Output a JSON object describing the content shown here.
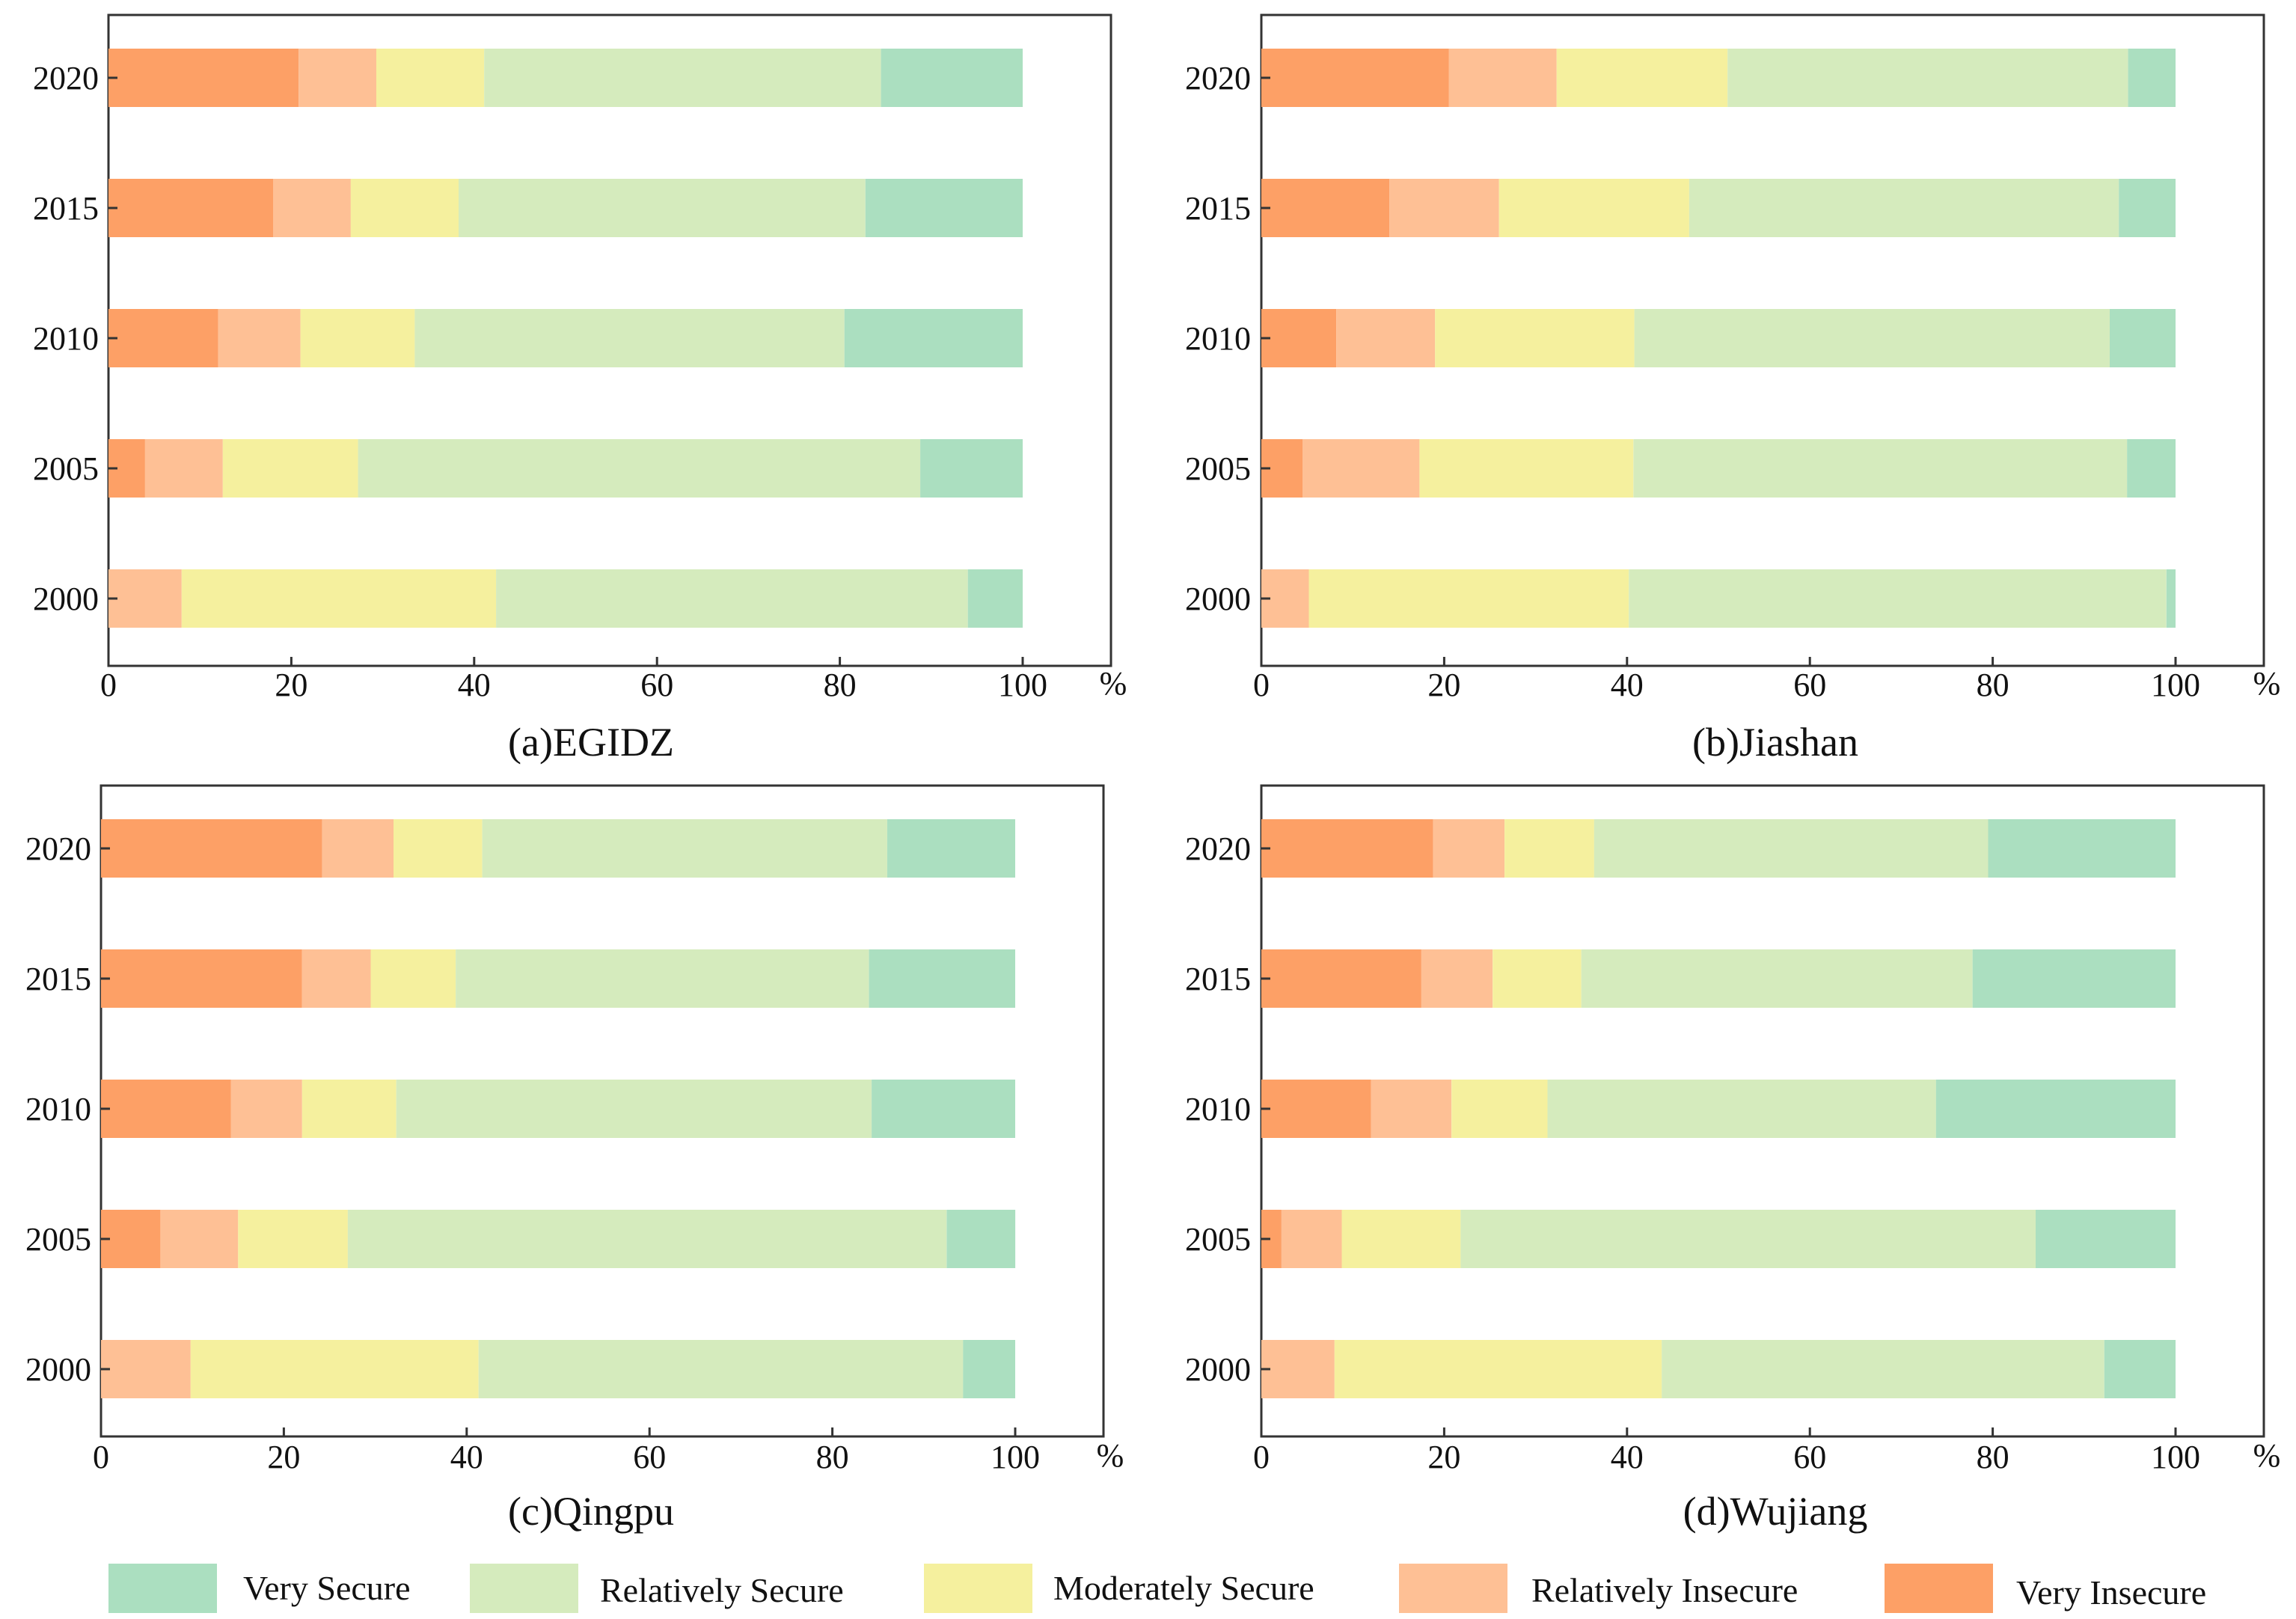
{
  "legend": [
    {
      "key": "very_secure",
      "label": "Very Secure",
      "color": "#abdfc0"
    },
    {
      "key": "relatively_secure",
      "label": "Relatively Secure",
      "color": "#d5ebbd"
    },
    {
      "key": "moderately_secure",
      "label": "Moderately Secure",
      "color": "#f5f09e"
    },
    {
      "key": "relatively_insecure",
      "label": "Relatively Insecure",
      "color": "#fec095"
    },
    {
      "key": "very_insecure",
      "label": "Very Insecure",
      "color": "#fda066"
    }
  ],
  "chart_data": [
    {
      "type": "bar",
      "orientation": "horizontal",
      "stacked": true,
      "title": "(a)EGIDZ",
      "xlabel_unit": "%",
      "xlim": [
        0,
        110
      ],
      "xticks": [
        "0",
        "20",
        "40",
        "60",
        "80",
        "100"
      ],
      "categories": [
        "2020",
        "2015",
        "2010",
        "2005",
        "2000"
      ],
      "series": [
        {
          "name": "Very Insecure",
          "values": [
            20.8,
            18.0,
            12.0,
            4.0,
            0
          ]
        },
        {
          "name": "Relatively Insecure",
          "values": [
            8.5,
            8.5,
            9.0,
            8.5,
            8.0
          ]
        },
        {
          "name": "Moderately Secure",
          "values": [
            11.8,
            11.8,
            12.5,
            14.8,
            34.4
          ]
        },
        {
          "name": "Relatively Secure",
          "values": [
            43.4,
            44.5,
            47.0,
            61.5,
            51.6
          ]
        },
        {
          "name": "Very Secure",
          "values": [
            15.5,
            17.2,
            19.5,
            11.2,
            6.0
          ]
        }
      ]
    },
    {
      "type": "bar",
      "orientation": "horizontal",
      "stacked": true,
      "title": "(b)Jiashan",
      "xlabel_unit": "%",
      "xlim": [
        0,
        110
      ],
      "xticks": [
        "0",
        "20",
        "40",
        "60",
        "80",
        "100"
      ],
      "categories": [
        "2020",
        "2015",
        "2010",
        "2005",
        "2000"
      ],
      "series": [
        {
          "name": "Very Insecure",
          "values": [
            20.5,
            14.0,
            8.2,
            4.5,
            0
          ]
        },
        {
          "name": "Relatively Insecure",
          "values": [
            11.8,
            12.0,
            10.8,
            12.8,
            5.2
          ]
        },
        {
          "name": "Moderately Secure",
          "values": [
            18.7,
            20.8,
            21.8,
            23.4,
            35.0
          ]
        },
        {
          "name": "Relatively Secure",
          "values": [
            43.8,
            47.0,
            52.0,
            54.0,
            58.8
          ]
        },
        {
          "name": "Very Secure",
          "values": [
            5.2,
            6.2,
            7.2,
            5.3,
            1.0
          ]
        }
      ]
    },
    {
      "type": "bar",
      "orientation": "horizontal",
      "stacked": true,
      "title": "(c)Qingpu",
      "xlabel_unit": "%",
      "xlim": [
        0,
        110
      ],
      "xticks": [
        "0",
        "20",
        "40",
        "60",
        "80",
        "100"
      ],
      "categories": [
        "2020",
        "2015",
        "2010",
        "2005",
        "2000"
      ],
      "series": [
        {
          "name": "Very Insecure",
          "values": [
            24.2,
            22.0,
            14.2,
            6.5,
            0
          ]
        },
        {
          "name": "Relatively Insecure",
          "values": [
            7.8,
            7.5,
            7.8,
            8.5,
            9.8
          ]
        },
        {
          "name": "Moderately Secure",
          "values": [
            9.7,
            9.3,
            10.3,
            12.0,
            31.5
          ]
        },
        {
          "name": "Relatively Secure",
          "values": [
            44.3,
            45.2,
            52.0,
            65.5,
            53.0
          ]
        },
        {
          "name": "Very Secure",
          "values": [
            14.0,
            16.0,
            15.7,
            7.5,
            5.7
          ]
        }
      ]
    },
    {
      "type": "bar",
      "orientation": "horizontal",
      "stacked": true,
      "title": "(d)Wujiang",
      "xlabel_unit": "%",
      "xlim": [
        0,
        110
      ],
      "xticks": [
        "0",
        "20",
        "40",
        "60",
        "80",
        "100"
      ],
      "categories": [
        "2020",
        "2015",
        "2010",
        "2005",
        "2000"
      ],
      "series": [
        {
          "name": "Very Insecure",
          "values": [
            18.8,
            17.5,
            12.0,
            2.2,
            0
          ]
        },
        {
          "name": "Relatively Insecure",
          "values": [
            7.8,
            7.8,
            8.8,
            6.6,
            8.0
          ]
        },
        {
          "name": "Moderately Secure",
          "values": [
            9.8,
            9.7,
            10.5,
            13.0,
            35.8
          ]
        },
        {
          "name": "Relatively Secure",
          "values": [
            43.1,
            42.8,
            42.5,
            62.9,
            48.4
          ]
        },
        {
          "name": "Very Secure",
          "values": [
            20.5,
            22.2,
            26.2,
            15.3,
            7.8
          ]
        }
      ]
    }
  ]
}
